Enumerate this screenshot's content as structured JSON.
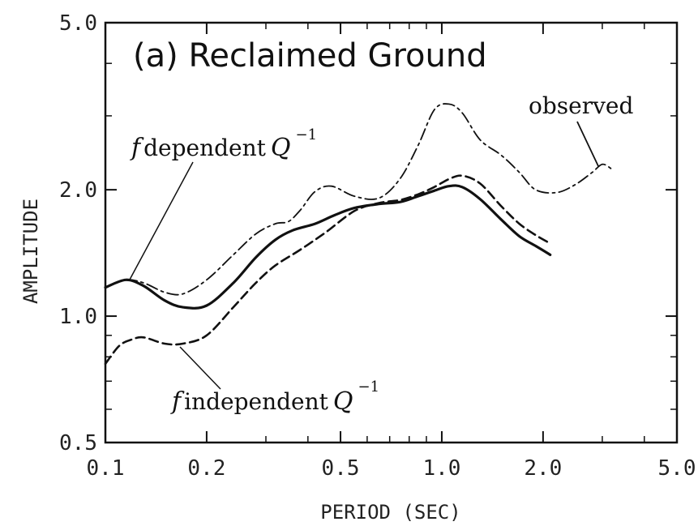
{
  "chart_data": {
    "type": "line",
    "title": "(a) Reclaimed Ground",
    "xlabel": "PERIOD (SEC)",
    "ylabel": "AMPLITUDE",
    "xscale": "log",
    "yscale": "log",
    "xlim": [
      0.1,
      5.0
    ],
    "ylim": [
      0.5,
      5.0
    ],
    "xticks": [
      0.1,
      0.2,
      0.5,
      1.0,
      2.0,
      5.0
    ],
    "xtick_labels": [
      "0.1",
      "0.2",
      "0.5",
      "1.0",
      "2.0",
      "5.0"
    ],
    "yticks": [
      0.5,
      1.0,
      2.0,
      5.0
    ],
    "ytick_labels": [
      "0.5",
      "1.0",
      "2.0",
      "5.0"
    ],
    "grid": false,
    "series": [
      {
        "name": "observed",
        "style": "dash-dot",
        "x": [
          0.1,
          0.115,
          0.13,
          0.15,
          0.17,
          0.2,
          0.24,
          0.28,
          0.32,
          0.35,
          0.38,
          0.42,
          0.47,
          0.55,
          0.65,
          0.75,
          0.85,
          0.95,
          1.05,
          1.15,
          1.3,
          1.5,
          1.7,
          1.9,
          2.2,
          2.5,
          2.8,
          3.0,
          3.2
        ],
        "y": [
          1.17,
          1.22,
          1.2,
          1.14,
          1.13,
          1.22,
          1.4,
          1.57,
          1.66,
          1.68,
          1.79,
          1.98,
          2.04,
          1.93,
          1.91,
          2.12,
          2.55,
          3.1,
          3.2,
          3.05,
          2.63,
          2.42,
          2.2,
          2.0,
          1.97,
          2.06,
          2.2,
          2.3,
          2.24
        ]
      },
      {
        "name": "f dependent Q^-1",
        "style": "solid",
        "x": [
          0.1,
          0.115,
          0.13,
          0.15,
          0.17,
          0.2,
          0.24,
          0.28,
          0.32,
          0.36,
          0.42,
          0.48,
          0.55,
          0.65,
          0.75,
          0.85,
          0.95,
          1.05,
          1.15,
          1.3,
          1.5,
          1.7,
          1.9,
          2.1
        ],
        "y": [
          1.17,
          1.22,
          1.18,
          1.09,
          1.05,
          1.06,
          1.2,
          1.38,
          1.52,
          1.6,
          1.66,
          1.74,
          1.81,
          1.85,
          1.87,
          1.93,
          1.99,
          2.04,
          2.03,
          1.9,
          1.7,
          1.55,
          1.47,
          1.4
        ]
      },
      {
        "name": "f independent Q^-1",
        "style": "dashed",
        "x": [
          0.1,
          0.11,
          0.12,
          0.13,
          0.15,
          0.17,
          0.2,
          0.24,
          0.28,
          0.32,
          0.38,
          0.45,
          0.55,
          0.65,
          0.75,
          0.85,
          0.95,
          1.05,
          1.15,
          1.3,
          1.5,
          1.7,
          1.9,
          2.1
        ],
        "y": [
          0.77,
          0.85,
          0.88,
          0.89,
          0.86,
          0.86,
          0.9,
          1.05,
          1.2,
          1.32,
          1.44,
          1.58,
          1.78,
          1.86,
          1.89,
          1.95,
          2.03,
          2.12,
          2.16,
          2.07,
          1.83,
          1.66,
          1.56,
          1.49
        ]
      }
    ],
    "annotations": {
      "observed": "observed",
      "f_dependent_f": "f",
      "f_dependent_text": "dependent",
      "f_independent_f": "f",
      "f_independent_text": "independent",
      "q_letter": "Q",
      "q_exponent": "−1"
    }
  }
}
